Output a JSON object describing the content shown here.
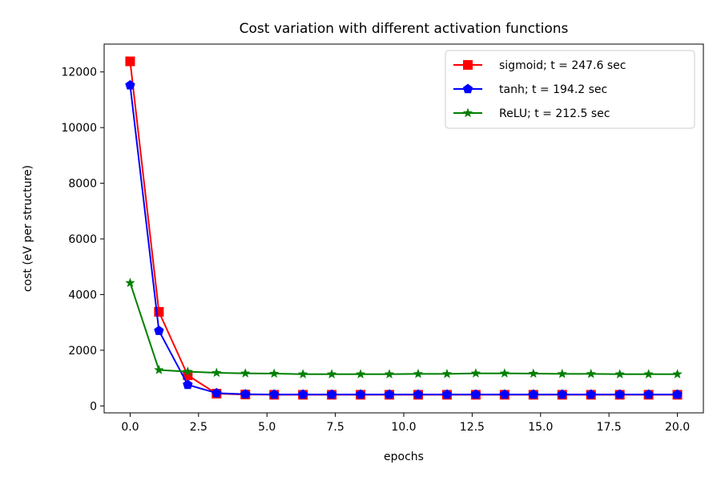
{
  "chart_data": {
    "type": "line",
    "title": "Cost variation with different activation functions",
    "xlabel": "epochs",
    "ylabel": "cost (eV per structure)",
    "xlim": [
      -0.95,
      20.95
    ],
    "ylim": [
      -250,
      13000
    ],
    "xticks": [
      0.0,
      2.5,
      5.0,
      7.5,
      10.0,
      12.5,
      15.0,
      17.5,
      20.0
    ],
    "xtick_labels": [
      "0.0",
      "2.5",
      "5.0",
      "7.5",
      "10.0",
      "12.5",
      "15.0",
      "17.5",
      "20.0"
    ],
    "yticks": [
      0,
      2000,
      4000,
      6000,
      8000,
      10000,
      12000
    ],
    "ytick_labels": [
      "0",
      "2000",
      "4000",
      "6000",
      "8000",
      "10000",
      "12000"
    ],
    "legend_position": "top-right",
    "grid": false,
    "x": [
      0,
      1.0526,
      2.1053,
      3.1579,
      4.2105,
      5.2632,
      6.3158,
      7.3684,
      8.4211,
      9.4737,
      10.5263,
      11.5789,
      12.6316,
      13.6842,
      14.7368,
      15.7895,
      16.8421,
      17.8947,
      18.9474,
      20.0
    ],
    "series": [
      {
        "name": "sigmoid; t = 247.6 sec",
        "color": "#ff0000",
        "marker": "square",
        "values": [
          12380,
          3380,
          1100,
          440,
          410,
          400,
          400,
          400,
          400,
          400,
          400,
          400,
          400,
          400,
          400,
          400,
          400,
          400,
          400,
          400
        ]
      },
      {
        "name": "tanh; t = 194.2 sec",
        "color": "#0000ff",
        "marker": "pentagon",
        "values": [
          11520,
          2700,
          760,
          460,
          420,
          410,
          410,
          410,
          410,
          410,
          410,
          410,
          410,
          410,
          410,
          410,
          410,
          410,
          410,
          410
        ]
      },
      {
        "name": "ReLU; t = 212.5 sec",
        "color": "#008000",
        "marker": "star",
        "values": [
          4420,
          1290,
          1230,
          1190,
          1170,
          1160,
          1140,
          1140,
          1140,
          1140,
          1150,
          1150,
          1170,
          1170,
          1160,
          1150,
          1150,
          1140,
          1140,
          1140
        ]
      }
    ]
  }
}
